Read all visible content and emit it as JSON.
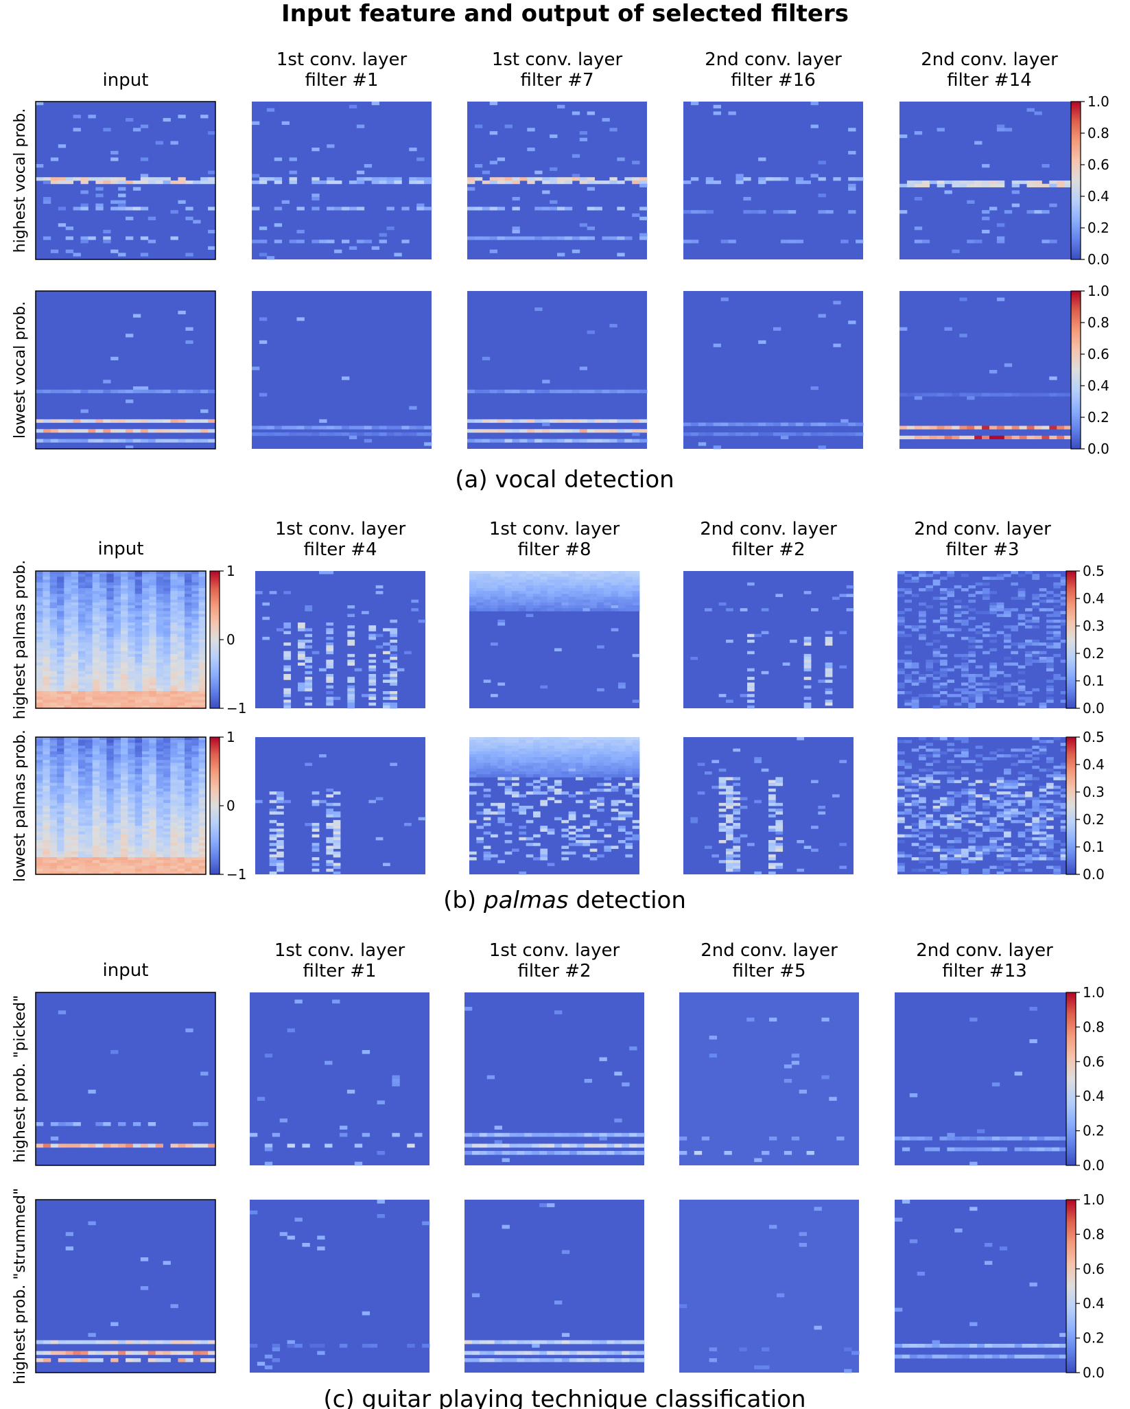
{
  "figure": {
    "title": "Input feature and output of selected filters"
  },
  "chart_data": [
    {
      "type": "heatmap",
      "panel": "a",
      "caption": "(a) vocal detection",
      "caption_parts": [
        "(a) ",
        "vocal detection"
      ],
      "columns": [
        "input",
        "1st conv. layer\nfilter #1",
        "1st conv. layer\nfilter #7",
        "2nd conv. layer\nfilter #16",
        "2nd conv. layer\nfilter #14"
      ],
      "rows": [
        {
          "label": "highest vocal prob.",
          "colorbar": {
            "column": 4,
            "ticks": [
              "1.0",
              "0.8",
              "0.6",
              "0.4",
              "0.2",
              "0.0"
            ]
          }
        },
        {
          "label": "lowest vocal prob.",
          "colorbar": {
            "column": 4,
            "ticks": [
              "1.0",
              "0.8",
              "0.6",
              "0.4",
              "0.2",
              "0.0"
            ]
          }
        }
      ],
      "colormap": "coolwarm",
      "grid": false
    },
    {
      "type": "heatmap",
      "panel": "b",
      "caption": "(b) palmas detection",
      "caption_parts": [
        "(b) ",
        "palmas",
        " detection"
      ],
      "columns": [
        "input",
        "1st conv. layer\nfilter #4",
        "1st conv. layer\nfilter #8",
        "2nd conv. layer\nfilter #2",
        "2nd conv. layer\nfilter #3"
      ],
      "rows": [
        {
          "label": "highest palmas prob.",
          "colorbars": [
            {
              "column": 0,
              "ticks": [
                "1",
                "0",
                "−1"
              ]
            },
            {
              "column": 4,
              "ticks": [
                "0.5",
                "0.4",
                "0.3",
                "0.2",
                "0.1",
                "0.0"
              ]
            }
          ]
        },
        {
          "label": "lowest palmas prob.",
          "colorbars": [
            {
              "column": 0,
              "ticks": [
                "1",
                "0",
                "−1"
              ]
            },
            {
              "column": 4,
              "ticks": [
                "0.5",
                "0.4",
                "0.3",
                "0.2",
                "0.1",
                "0.0"
              ]
            }
          ]
        }
      ],
      "colormap": "coolwarm",
      "grid": false
    },
    {
      "type": "heatmap",
      "panel": "c",
      "caption": "(c) guitar playing technique classification",
      "caption_parts": [
        "(c) ",
        "guitar playing technique classification"
      ],
      "columns": [
        "input",
        "1st conv. layer\nfilter #1",
        "1st conv. layer\nfilter #2",
        "2nd conv. layer\nfilter #5",
        "2nd conv. layer\nfilter #13"
      ],
      "rows": [
        {
          "label": "highest prob. \"picked\"",
          "colorbar": {
            "column": 4,
            "ticks": [
              "1.0",
              "0.8",
              "0.6",
              "0.4",
              "0.2",
              "0.0"
            ]
          }
        },
        {
          "label": "highest prob. \"strummed\"",
          "colorbar": {
            "column": 4,
            "ticks": [
              "1.0",
              "0.8",
              "0.6",
              "0.4",
              "0.2",
              "0.0"
            ]
          }
        }
      ],
      "colormap": "coolwarm",
      "grid": false
    }
  ]
}
